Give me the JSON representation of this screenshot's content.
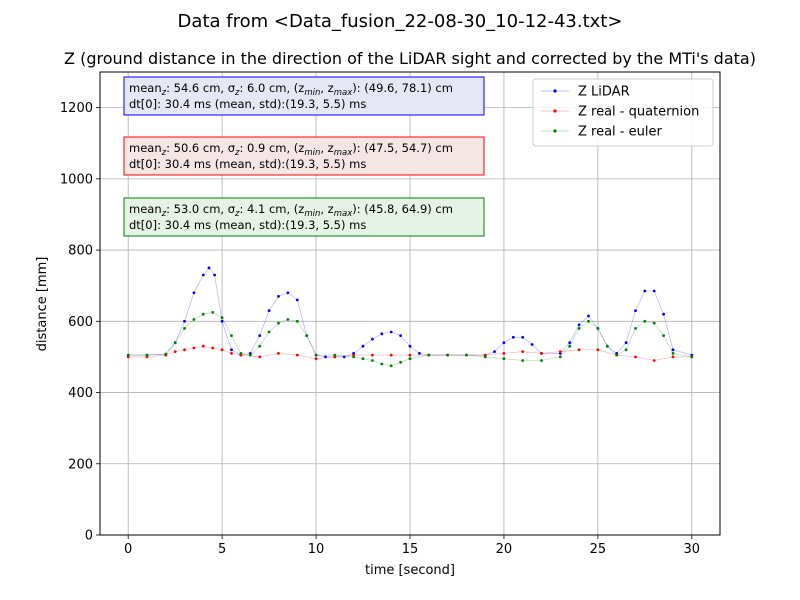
{
  "figure": {
    "suptitle": "Data from <Data_fusion_22-08-30_10-12-43.txt>"
  },
  "chart_data": {
    "type": "scatter",
    "title": "Z (ground distance in the direction of the LiDAR sight and corrected by the MTi's data)",
    "xlabel": "time [second]",
    "ylabel": "distance [mm]",
    "xlim": [
      -1.5,
      31.5
    ],
    "ylim": [
      0,
      1300
    ],
    "xticks": [
      0,
      5,
      10,
      15,
      20,
      25,
      30
    ],
    "yticks": [
      0,
      200,
      400,
      600,
      800,
      1000,
      1200
    ],
    "grid": true,
    "legend_position": "top-right",
    "series": [
      {
        "name": "Z LiDAR",
        "color": "#0000ff",
        "x": [
          0,
          1,
          2,
          2.5,
          3,
          3.5,
          4,
          4.3,
          4.6,
          5,
          5.5,
          6,
          6.5,
          7,
          7.5,
          8,
          8.5,
          9,
          9.5,
          10,
          10.5,
          11,
          11.5,
          12,
          12.5,
          13,
          13.5,
          14,
          14.5,
          15,
          15.5,
          16,
          17,
          18,
          19,
          19.5,
          20,
          20.5,
          21,
          21.5,
          22,
          23,
          23.5,
          24,
          24.5,
          25,
          25.5,
          26,
          26.5,
          27,
          27.5,
          28,
          28.5,
          29,
          30
        ],
        "y": [
          505,
          505,
          508,
          540,
          600,
          680,
          730,
          750,
          730,
          600,
          520,
          505,
          510,
          560,
          630,
          670,
          680,
          660,
          560,
          505,
          500,
          500,
          500,
          510,
          530,
          550,
          565,
          570,
          560,
          530,
          510,
          505,
          505,
          505,
          505,
          515,
          540,
          555,
          555,
          535,
          510,
          510,
          540,
          590,
          615,
          580,
          530,
          510,
          540,
          630,
          685,
          685,
          620,
          520,
          505
        ]
      },
      {
        "name": "Z real - quaternion",
        "color": "#ff0000",
        "x": [
          0,
          1,
          2,
          2.5,
          3,
          3.5,
          4,
          4.5,
          5,
          5.5,
          6,
          7,
          8,
          9,
          10,
          11,
          12,
          13,
          14,
          15,
          16,
          17,
          18,
          19,
          20,
          21,
          22,
          23,
          24,
          25,
          26,
          27,
          28,
          29,
          30
        ],
        "y": [
          500,
          500,
          505,
          515,
          520,
          525,
          530,
          525,
          520,
          510,
          505,
          500,
          510,
          505,
          495,
          500,
          505,
          505,
          505,
          505,
          505,
          505,
          505,
          505,
          510,
          515,
          510,
          515,
          520,
          520,
          505,
          500,
          490,
          500,
          500
        ]
      },
      {
        "name": "Z real - euler",
        "color": "#008000",
        "x": [
          0,
          1,
          2,
          2.5,
          3,
          3.5,
          4,
          4.5,
          5,
          5.5,
          6,
          6.5,
          7,
          7.5,
          8,
          8.5,
          9,
          9.5,
          10,
          11,
          12,
          12.5,
          13,
          13.5,
          14,
          14.5,
          15,
          16,
          17,
          18,
          19,
          20,
          21,
          22,
          23,
          23.5,
          24,
          24.5,
          25,
          25.5,
          26,
          26.5,
          27,
          27.5,
          28,
          28.5,
          29,
          30
        ],
        "y": [
          505,
          505,
          508,
          540,
          580,
          605,
          620,
          625,
          610,
          560,
          510,
          505,
          530,
          570,
          595,
          605,
          600,
          560,
          505,
          505,
          500,
          495,
          490,
          480,
          475,
          485,
          495,
          505,
          505,
          505,
          500,
          495,
          490,
          490,
          500,
          530,
          580,
          600,
          580,
          530,
          505,
          520,
          580,
          600,
          595,
          560,
          510,
          500
        ]
      }
    ],
    "stats_boxes": [
      {
        "name": "lidar-stats-box",
        "line1": {
          "pre1": "mean",
          "sub1": "z",
          "pre2": ": 54.6 cm, σ",
          "sub2": "z",
          "pre3": ": 6.0 cm, (z",
          "sub3": "min",
          "pre4": ", z",
          "sub4": "max",
          "pre5": "): (49.6, 78.1) cm"
        },
        "line2": "dt[0]: 30.4 ms (mean, std):(19.3, 5.5) ms",
        "edge": "#0000ff",
        "fill": "#e6e6f5"
      },
      {
        "name": "quaternion-stats-box",
        "line1": {
          "pre1": "mean",
          "sub1": "z",
          "pre2": ": 50.6 cm, σ",
          "sub2": "z",
          "pre3": ": 0.9 cm, (z",
          "sub3": "min",
          "pre4": ", z",
          "sub4": "max",
          "pre5": "): (47.5, 54.7) cm"
        },
        "line2": "dt[0]: 30.4 ms (mean, std):(19.3, 5.5) ms",
        "edge": "#ff0000",
        "fill": "#f5e6e6"
      },
      {
        "name": "euler-stats-box",
        "line1": {
          "pre1": "mean",
          "sub1": "z",
          "pre2": ": 53.0 cm, σ",
          "sub2": "z",
          "pre3": ": 4.1 cm, (z",
          "sub3": "min",
          "pre4": ", z",
          "sub4": "max",
          "pre5": "): (45.8, 64.9) cm"
        },
        "line2": "dt[0]: 30.4 ms (mean, std):(19.3, 5.5) ms",
        "edge": "#008000",
        "fill": "#e6f2e6"
      }
    ]
  }
}
